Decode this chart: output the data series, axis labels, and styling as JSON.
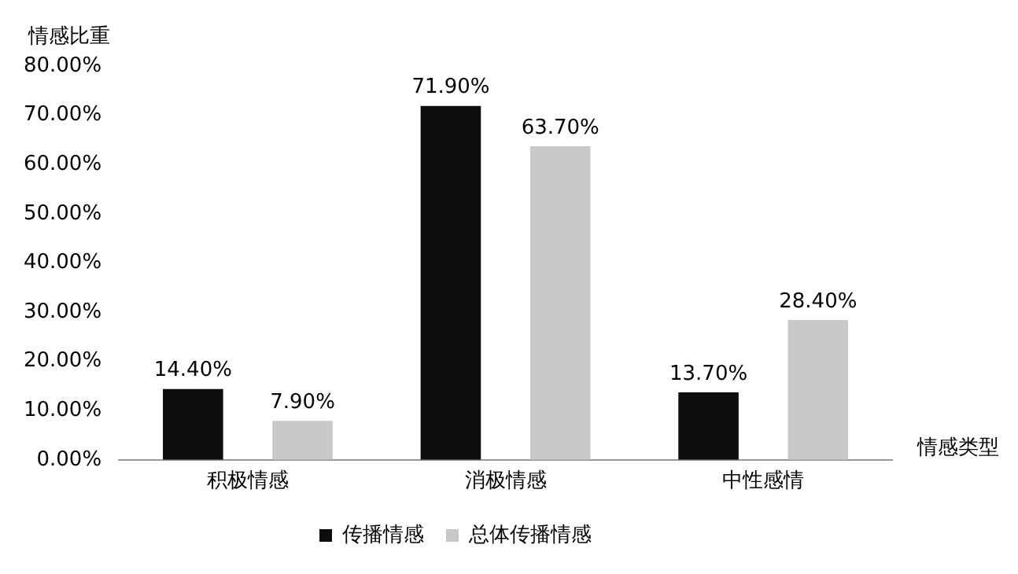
{
  "chart_data": {
    "type": "bar",
    "xlabel": "情感类型",
    "ylabel": "情感比重",
    "categories": [
      "积极情感",
      "消极情感",
      "中性感情"
    ],
    "series": [
      {
        "name": "传播情感",
        "color": "#0d0d0d",
        "values": [
          14.4,
          71.9,
          13.7
        ],
        "value_labels": [
          "14.40%",
          "71.90%",
          "13.70%"
        ]
      },
      {
        "name": "总体传播情感",
        "color": "#c8c8c8",
        "values": [
          7.9,
          63.7,
          28.4
        ],
        "value_labels": [
          "7.90%",
          "63.70%",
          "28.40%"
        ]
      }
    ],
    "ylim": [
      0,
      80
    ],
    "yticks": [
      {
        "value": 0,
        "label": "0.00%"
      },
      {
        "value": 10,
        "label": "10.00%"
      },
      {
        "value": 20,
        "label": "20.00%"
      },
      {
        "value": 30,
        "label": "30.00%"
      },
      {
        "value": 40,
        "label": "40.00%"
      },
      {
        "value": 50,
        "label": "50.00%"
      },
      {
        "value": 60,
        "label": "60.00%"
      },
      {
        "value": 70,
        "label": "70.00%"
      },
      {
        "value": 80,
        "label": "80.00%"
      }
    ],
    "grid": false,
    "legend": "bottom"
  }
}
